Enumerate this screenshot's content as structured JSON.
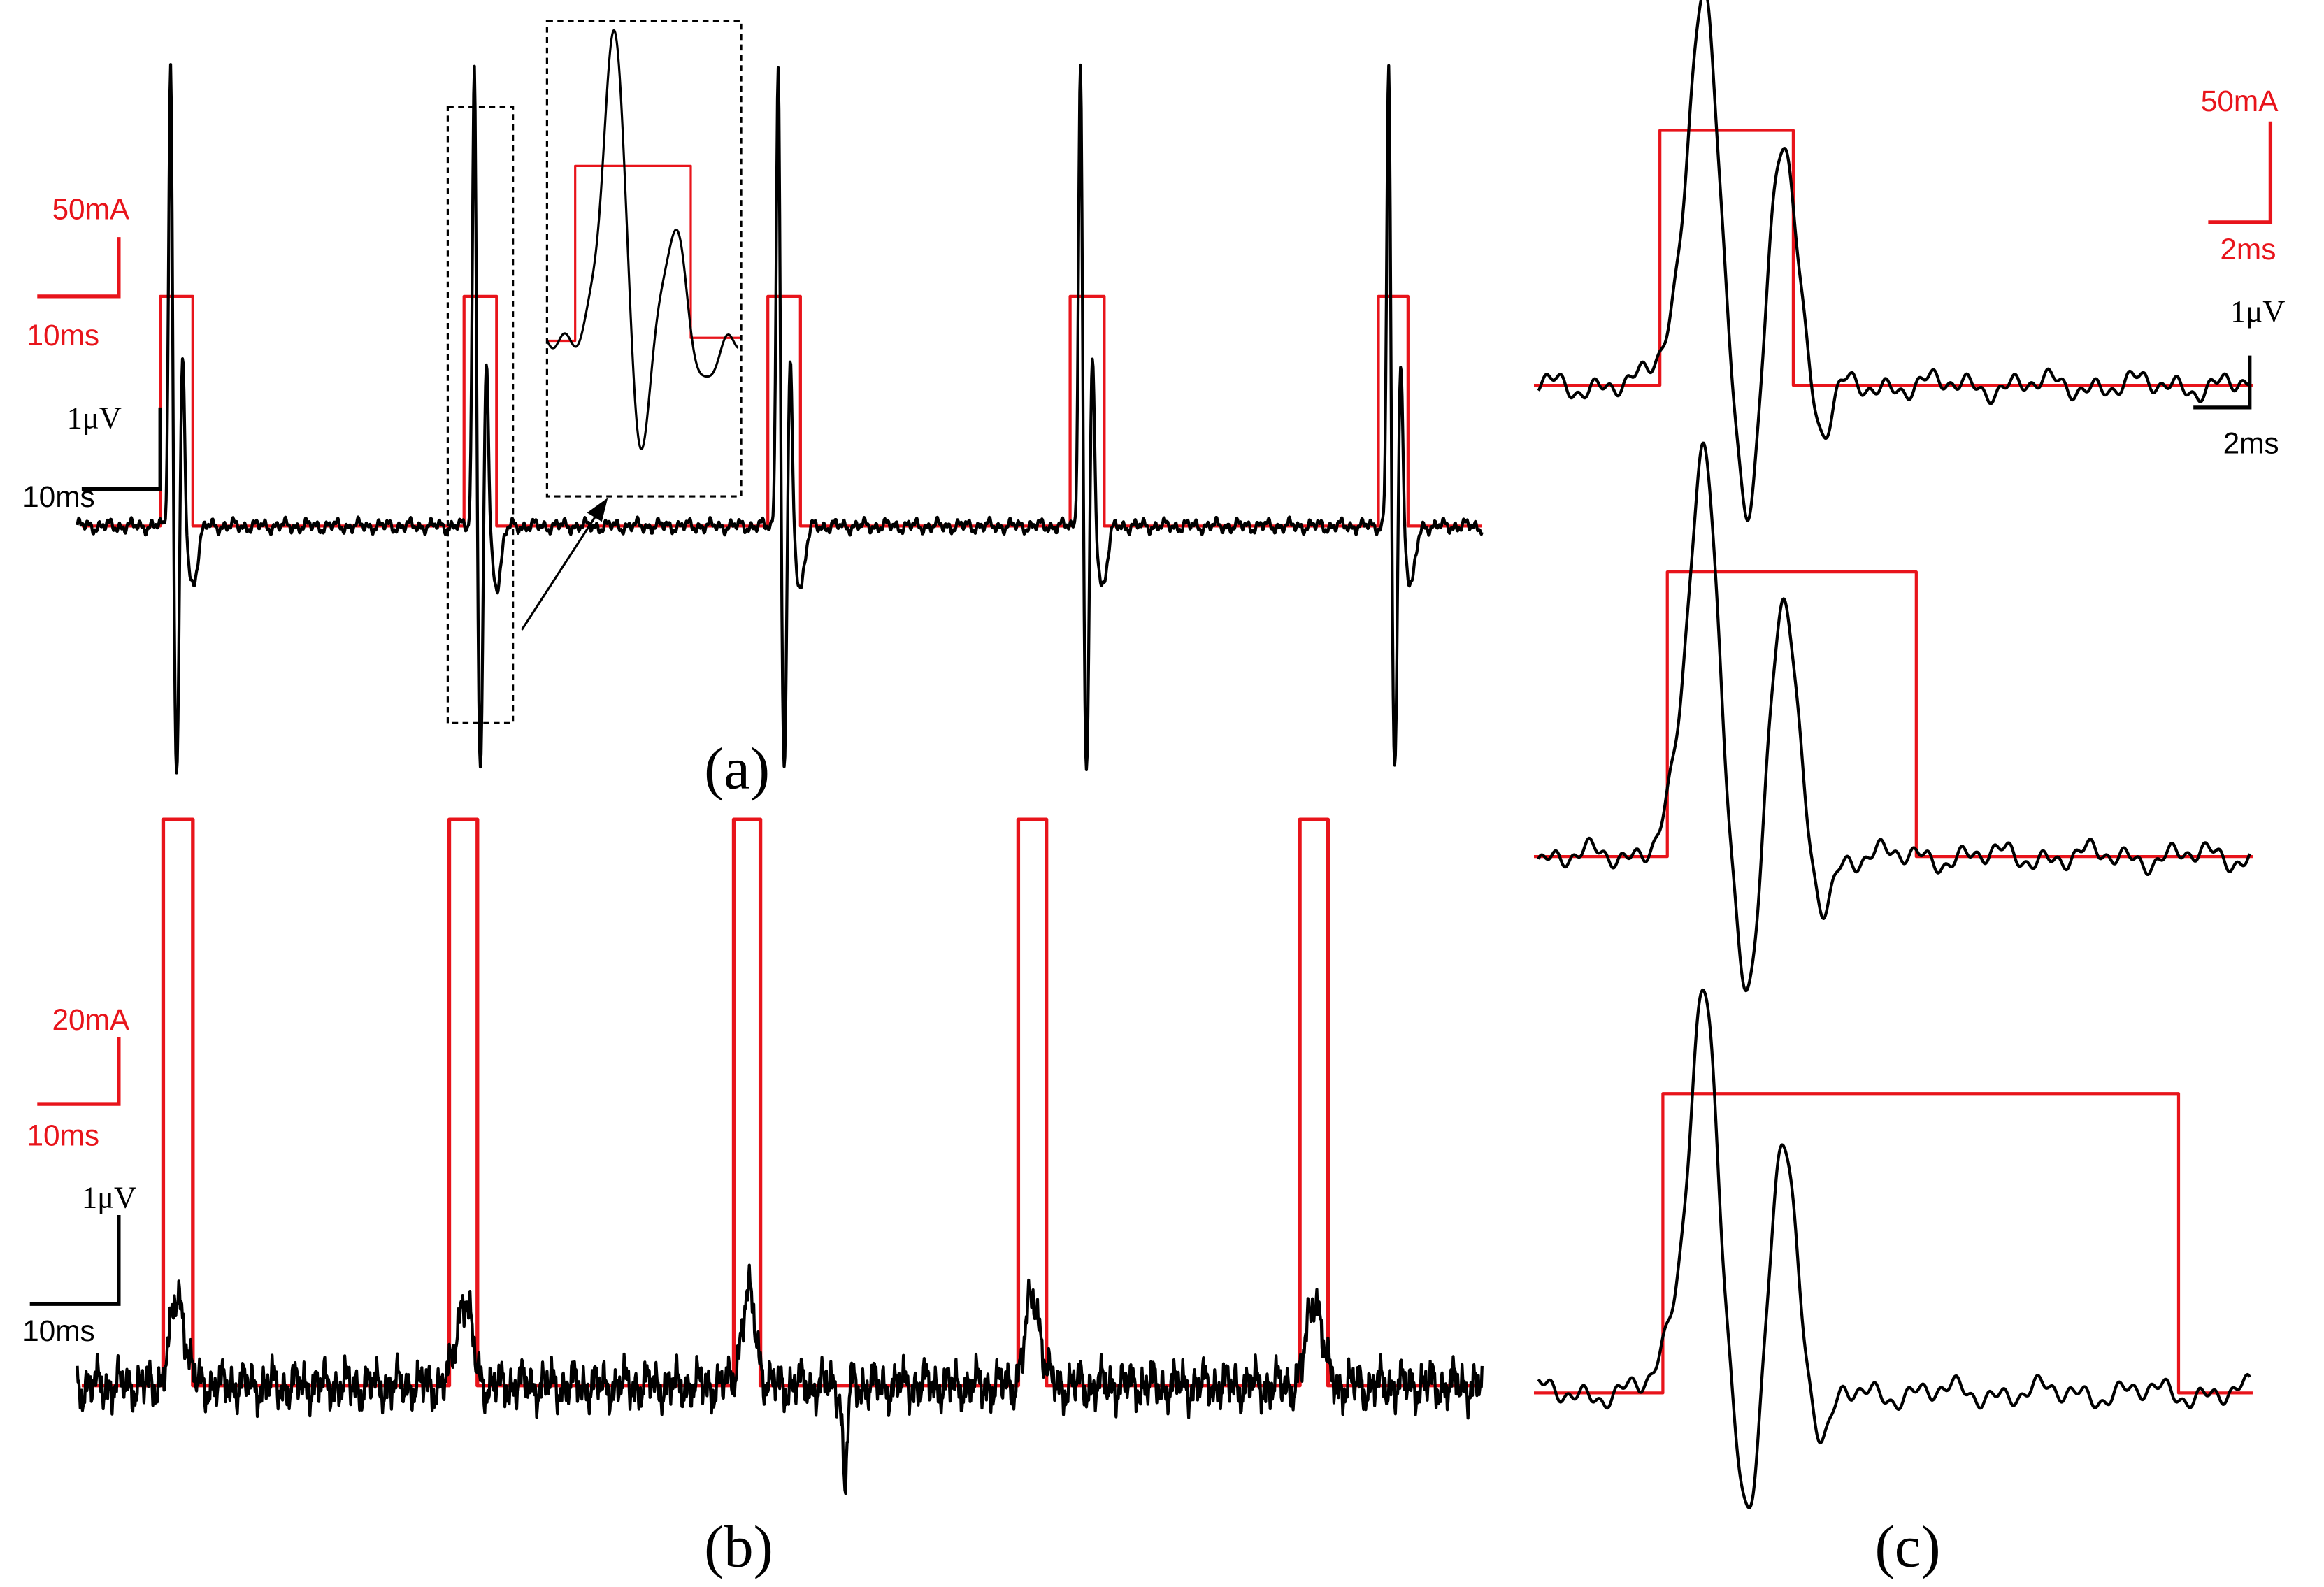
{
  "panel_a": {
    "label": "(a)",
    "current_scale": "50mA",
    "current_time_scale": "10ms",
    "voltage_scale": "1μV",
    "voltage_time_scale": "10ms"
  },
  "panel_b": {
    "label": "(b)",
    "current_scale": "20mA",
    "current_time_scale": "10ms",
    "voltage_scale": "1μV",
    "voltage_time_scale": "10ms"
  },
  "panel_c": {
    "label": "(c)",
    "current_scale": "50mA",
    "current_time_scale": "2ms",
    "voltage_scale": "1μV",
    "voltage_time_scale": "2ms"
  }
}
